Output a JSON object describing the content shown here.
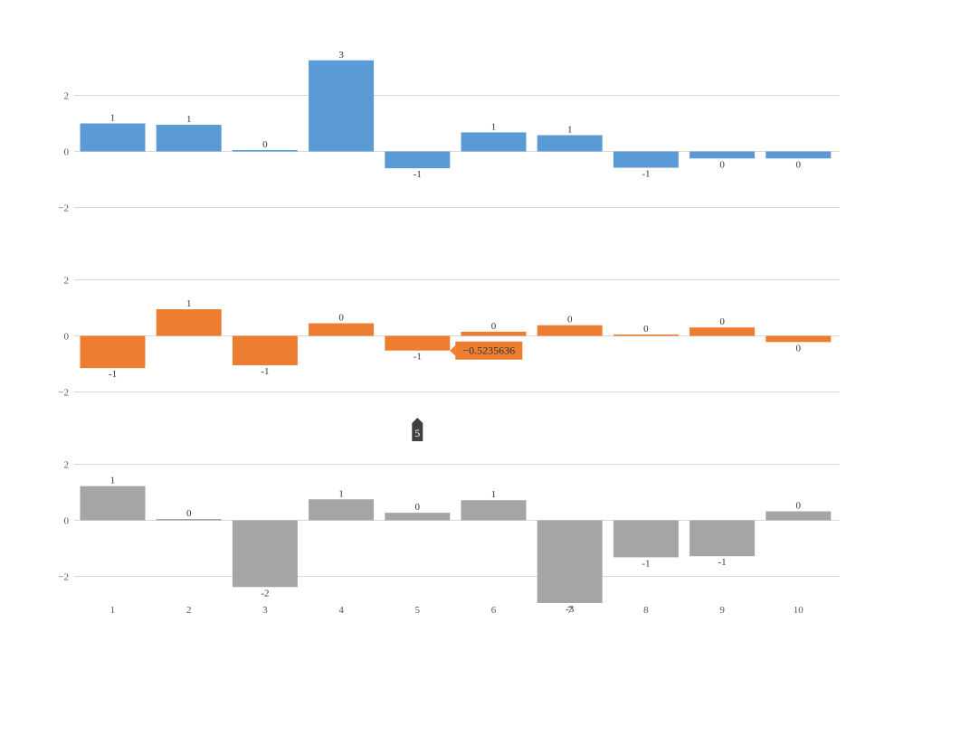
{
  "chart_data": {
    "type": "bar",
    "x": [
      1,
      2,
      3,
      4,
      5,
      6,
      7,
      8,
      9,
      10
    ],
    "x_tick_labels": [
      "1",
      "2",
      "3",
      "4",
      "5",
      "6",
      "7",
      "8",
      "9",
      "10"
    ],
    "y_tick_labels": [
      "−2",
      "0",
      "2"
    ],
    "ylim": [
      -2.4,
      3.3
    ],
    "grid": true,
    "panels": [
      {
        "color": "#5b9bd5",
        "values": [
          1.0,
          0.95,
          0.02,
          3.25,
          -0.6,
          0.68,
          0.58,
          -0.58,
          -0.25,
          -0.25
        ],
        "data_labels": [
          "1",
          "1",
          "0",
          "3",
          "-1",
          "1",
          "1",
          "-1",
          "0",
          "0"
        ]
      },
      {
        "color": "#ed7d31",
        "values": [
          -1.15,
          0.95,
          -1.05,
          0.45,
          -0.5235636,
          0.15,
          0.38,
          0.05,
          0.3,
          -0.22
        ],
        "data_labels": [
          "-1",
          "1",
          "-1",
          "0",
          "-1",
          "0",
          "0",
          "0",
          "0",
          "0"
        ]
      },
      {
        "color": "#a5a5a5",
        "values": [
          1.22,
          0.03,
          -2.38,
          0.75,
          0.27,
          0.72,
          -2.95,
          -1.32,
          -1.28,
          0.32
        ],
        "data_labels": [
          "1",
          "0",
          "-2",
          "1",
          "0",
          "1",
          "-3",
          "-1",
          "-1",
          "0"
        ]
      }
    ],
    "tooltip": {
      "panel": 1,
      "index": 4,
      "text": "−0.5235636",
      "color": "#ed7d31"
    },
    "cursor": {
      "x": 5,
      "label": "5",
      "color": "#404040"
    }
  }
}
